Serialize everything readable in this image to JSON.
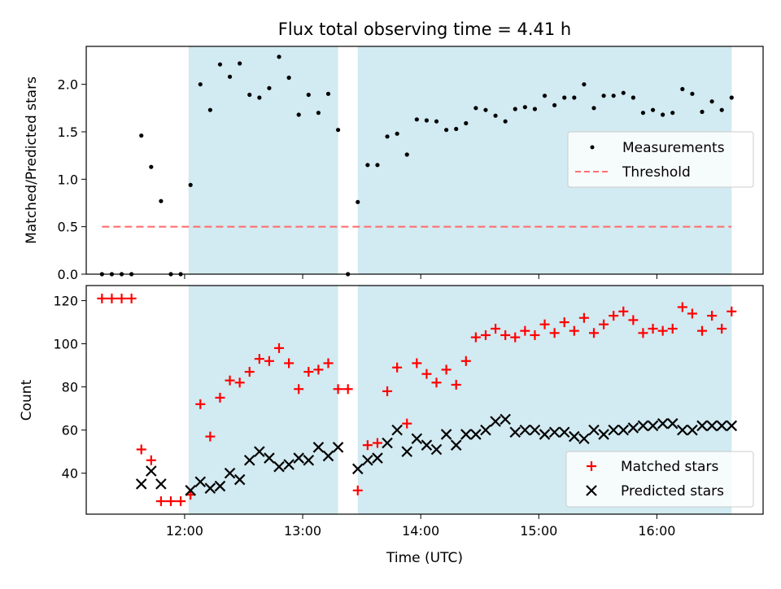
{
  "chart_data": [
    {
      "type": "scatter",
      "title": "Flux total observing time = 4.41 h",
      "xlabel": "",
      "ylabel": "Matched/Predicted stars",
      "xlim": [
        "11:10",
        "16:54"
      ],
      "ylim": [
        0,
        2.4
      ],
      "yticks": [
        0.0,
        0.5,
        1.0,
        1.5,
        2.0
      ],
      "shaded_intervals": [
        [
          "12:02",
          "13:18"
        ],
        [
          "13:28",
          "16:38"
        ]
      ],
      "shade_color": "#add8e6",
      "legend_position": "center-right",
      "series": [
        {
          "name": "Measurements",
          "marker": "dot",
          "color": "#000000",
          "x": [
            "11:18",
            "11:23",
            "11:28",
            "11:33",
            "11:38",
            "11:43",
            "11:48",
            "11:53",
            "11:58",
            "12:03",
            "12:08",
            "12:13",
            "12:18",
            "12:23",
            "12:28",
            "12:33",
            "12:38",
            "12:43",
            "12:48",
            "12:53",
            "12:58",
            "13:03",
            "13:08",
            "13:13",
            "13:18",
            "13:23",
            "13:28",
            "13:33",
            "13:38",
            "13:43",
            "13:48",
            "13:53",
            "13:58",
            "14:03",
            "14:08",
            "14:13",
            "14:18",
            "14:23",
            "14:28",
            "14:33",
            "14:38",
            "14:43",
            "14:48",
            "14:53",
            "14:58",
            "15:03",
            "15:08",
            "15:13",
            "15:18",
            "15:23",
            "15:28",
            "15:33",
            "15:38",
            "15:43",
            "15:48",
            "15:53",
            "15:58",
            "16:03",
            "16:08",
            "16:13",
            "16:18",
            "16:23",
            "16:28",
            "16:33",
            "16:38"
          ],
          "y": [
            0.0,
            0.0,
            0.0,
            0.0,
            1.46,
            1.13,
            0.77,
            0.0,
            0.0,
            0.94,
            2.0,
            1.73,
            2.21,
            2.08,
            2.22,
            1.89,
            1.86,
            1.96,
            2.29,
            2.07,
            1.68,
            1.89,
            1.7,
            1.9,
            1.52,
            0.0,
            0.76,
            1.15,
            1.15,
            1.45,
            1.48,
            1.26,
            1.63,
            1.62,
            1.61,
            1.52,
            1.53,
            1.59,
            1.75,
            1.73,
            1.67,
            1.61,
            1.74,
            1.76,
            1.74,
            1.88,
            1.78,
            1.86,
            1.86,
            2.0,
            1.75,
            1.88,
            1.88,
            1.91,
            1.86,
            1.7,
            1.73,
            1.68,
            1.7,
            1.95,
            1.9,
            1.71,
            1.82,
            1.73,
            1.86
          ]
        },
        {
          "name": "Threshold",
          "marker": "dashed-line",
          "color": "#ff7070",
          "x": [
            "11:18",
            "16:38"
          ],
          "y": [
            0.5,
            0.5
          ]
        }
      ]
    },
    {
      "type": "scatter",
      "title": "",
      "xlabel": "Time (UTC)",
      "ylabel": "Count",
      "xlim": [
        "11:10",
        "16:54"
      ],
      "ylim": [
        21,
        127
      ],
      "yticks": [
        40,
        60,
        80,
        100,
        120
      ],
      "xticks": [
        "12:00",
        "13:00",
        "14:00",
        "15:00",
        "16:00"
      ],
      "shaded_intervals": [
        [
          "12:02",
          "13:18"
        ],
        [
          "13:28",
          "16:38"
        ]
      ],
      "shade_color": "#add8e6",
      "legend_position": "lower-right",
      "series": [
        {
          "name": "Matched stars",
          "marker": "plus",
          "color": "#ff0000",
          "x": [
            "11:18",
            "11:23",
            "11:28",
            "11:33",
            "11:38",
            "11:43",
            "11:48",
            "11:53",
            "11:58",
            "12:03",
            "12:08",
            "12:13",
            "12:18",
            "12:23",
            "12:28",
            "12:33",
            "12:38",
            "12:43",
            "12:48",
            "12:53",
            "12:58",
            "13:03",
            "13:08",
            "13:13",
            "13:18",
            "13:23",
            "13:28",
            "13:33",
            "13:38",
            "13:43",
            "13:48",
            "13:53",
            "13:58",
            "14:03",
            "14:08",
            "14:13",
            "14:18",
            "14:23",
            "14:28",
            "14:33",
            "14:38",
            "14:43",
            "14:48",
            "14:53",
            "14:58",
            "15:03",
            "15:08",
            "15:13",
            "15:18",
            "15:23",
            "15:28",
            "15:33",
            "15:38",
            "15:43",
            "15:48",
            "15:53",
            "15:58",
            "16:03",
            "16:08",
            "16:13",
            "16:18",
            "16:23",
            "16:28",
            "16:33",
            "16:38"
          ],
          "y": [
            121,
            121,
            121,
            121,
            51,
            46,
            27,
            27,
            27,
            30,
            72,
            57,
            75,
            83,
            82,
            87,
            93,
            92,
            98,
            91,
            79,
            87,
            88,
            91,
            79,
            79,
            32,
            53,
            54,
            78,
            89,
            63,
            91,
            86,
            82,
            88,
            81,
            92,
            103,
            104,
            107,
            104,
            103,
            106,
            104,
            109,
            105,
            110,
            106,
            112,
            105,
            109,
            113,
            115,
            111,
            105,
            107,
            106,
            107,
            117,
            114,
            106,
            113,
            107,
            115
          ]
        },
        {
          "name": "Predicted stars",
          "marker": "x",
          "color": "#000000",
          "x": [
            "11:38",
            "11:43",
            "11:48",
            "12:03",
            "12:08",
            "12:13",
            "12:18",
            "12:23",
            "12:28",
            "12:33",
            "12:38",
            "12:43",
            "12:48",
            "12:53",
            "12:58",
            "13:03",
            "13:08",
            "13:13",
            "13:18",
            "13:28",
            "13:33",
            "13:38",
            "13:43",
            "13:48",
            "13:53",
            "13:58",
            "14:03",
            "14:08",
            "14:13",
            "14:18",
            "14:23",
            "14:28",
            "14:33",
            "14:38",
            "14:43",
            "14:48",
            "14:53",
            "14:58",
            "15:03",
            "15:08",
            "15:13",
            "15:18",
            "15:23",
            "15:28",
            "15:33",
            "15:38",
            "15:43",
            "15:48",
            "15:53",
            "15:58",
            "16:03",
            "16:08",
            "16:13",
            "16:18",
            "16:23",
            "16:28",
            "16:33",
            "16:38"
          ],
          "y": [
            35,
            41,
            35,
            32,
            36,
            33,
            34,
            40,
            37,
            46,
            50,
            47,
            43,
            44,
            47,
            46,
            52,
            48,
            52,
            42,
            46,
            47,
            54,
            60,
            50,
            56,
            53,
            51,
            58,
            53,
            58,
            58,
            60,
            64,
            65,
            59,
            60,
            60,
            58,
            59,
            59,
            57,
            56,
            60,
            58,
            60,
            60,
            61,
            62,
            62,
            63,
            63,
            60,
            60,
            62,
            62,
            62,
            62
          ]
        }
      ]
    }
  ]
}
